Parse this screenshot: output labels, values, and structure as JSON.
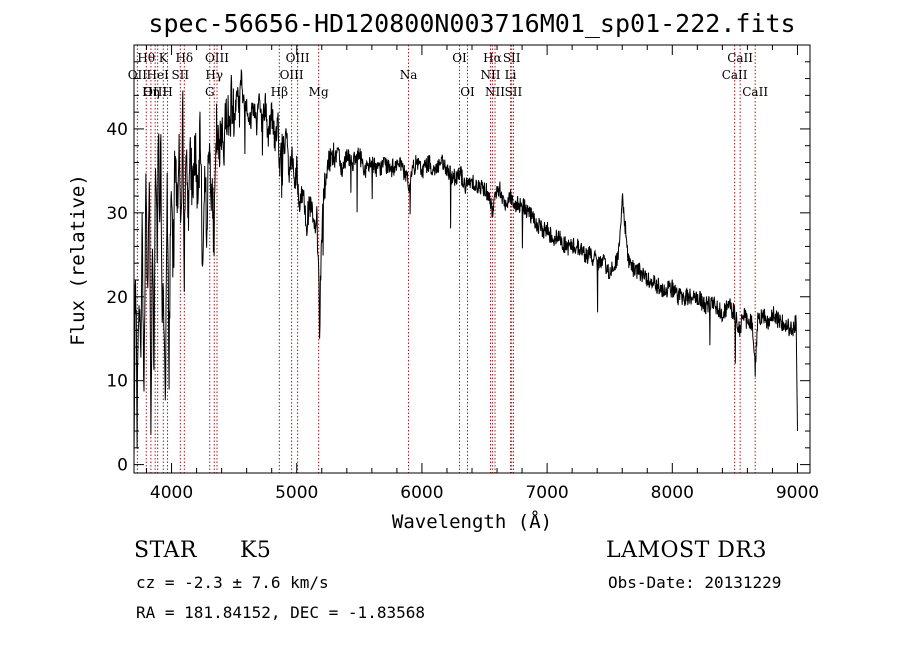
{
  "chart_data": {
    "type": "line",
    "title": "spec-56656-HD120800N003716M01_sp01-222.fits",
    "xlabel": "Wavelength (Å)",
    "ylabel": "Flux (relative)",
    "xlim": [
      3700,
      9100
    ],
    "ylim": [
      -1,
      50
    ],
    "xticks": [
      4000,
      5000,
      6000,
      7000,
      8000,
      9000
    ],
    "yticks": [
      0,
      10,
      20,
      30,
      40
    ],
    "series": [
      {
        "name": "spectrum",
        "anchors": [
          [
            3700,
            0
          ],
          [
            3712,
            25
          ],
          [
            3725,
            5
          ],
          [
            3740,
            22
          ],
          [
            3752,
            12
          ],
          [
            3765,
            28
          ],
          [
            3780,
            8
          ],
          [
            3795,
            35
          ],
          [
            3810,
            18
          ],
          [
            3822,
            37
          ],
          [
            3835,
            5
          ],
          [
            3848,
            28
          ],
          [
            3860,
            14
          ],
          [
            3872,
            37
          ],
          [
            3885,
            24
          ],
          [
            3895,
            40
          ],
          [
            3905,
            30
          ],
          [
            3915,
            39
          ],
          [
            3925,
            14
          ],
          [
            3935,
            22
          ],
          [
            3950,
            8
          ],
          [
            3965,
            32
          ],
          [
            3980,
            12
          ],
          [
            3995,
            34
          ],
          [
            4010,
            24
          ],
          [
            4030,
            38
          ],
          [
            4045,
            30
          ],
          [
            4060,
            39
          ],
          [
            4075,
            26
          ],
          [
            4090,
            42
          ],
          [
            4102,
            24
          ],
          [
            4115,
            38
          ],
          [
            4130,
            32
          ],
          [
            4150,
            36
          ],
          [
            4170,
            33
          ],
          [
            4190,
            38
          ],
          [
            4210,
            30
          ],
          [
            4230,
            40
          ],
          [
            4250,
            22
          ],
          [
            4265,
            37
          ],
          [
            4280,
            28
          ],
          [
            4300,
            38
          ],
          [
            4320,
            33
          ],
          [
            4340,
            27
          ],
          [
            4360,
            40
          ],
          [
            4380,
            36
          ],
          [
            4400,
            41
          ],
          [
            4420,
            38
          ],
          [
            4440,
            43
          ],
          [
            4460,
            40
          ],
          [
            4480,
            44
          ],
          [
            4500,
            41
          ],
          [
            4520,
            45
          ],
          [
            4540,
            43
          ],
          [
            4560,
            46
          ],
          [
            4580,
            42
          ],
          [
            4600,
            44
          ],
          [
            4620,
            40
          ],
          [
            4650,
            43
          ],
          [
            4680,
            41
          ],
          [
            4700,
            44
          ],
          [
            4720,
            40
          ],
          [
            4750,
            43
          ],
          [
            4770,
            39
          ],
          [
            4800,
            42
          ],
          [
            4830,
            38
          ],
          [
            4850,
            41
          ],
          [
            4862,
            35
          ],
          [
            4880,
            39
          ],
          [
            4900,
            37
          ],
          [
            4920,
            39
          ],
          [
            4940,
            34
          ],
          [
            4960,
            37
          ],
          [
            4980,
            33
          ],
          [
            5000,
            35
          ],
          [
            5020,
            30
          ],
          [
            5050,
            33
          ],
          [
            5080,
            29
          ],
          [
            5110,
            31
          ],
          [
            5140,
            28
          ],
          [
            5160,
            29
          ],
          [
            5175,
            24
          ],
          [
            5183,
            16
          ],
          [
            5195,
            26
          ],
          [
            5220,
            33
          ],
          [
            5250,
            35
          ],
          [
            5280,
            38
          ],
          [
            5300,
            36
          ],
          [
            5330,
            38
          ],
          [
            5360,
            35
          ],
          [
            5400,
            37
          ],
          [
            5450,
            36
          ],
          [
            5500,
            37
          ],
          [
            5550,
            35
          ],
          [
            5600,
            36
          ],
          [
            5650,
            35
          ],
          [
            5700,
            36
          ],
          [
            5750,
            35
          ],
          [
            5800,
            36
          ],
          [
            5850,
            35
          ],
          [
            5890,
            34
          ],
          [
            5900,
            32
          ],
          [
            5920,
            35
          ],
          [
            5960,
            36
          ],
          [
            6000,
            35
          ],
          [
            6050,
            36
          ],
          [
            6100,
            35
          ],
          [
            6150,
            36
          ],
          [
            6200,
            35
          ],
          [
            6250,
            34
          ],
          [
            6300,
            35
          ],
          [
            6350,
            33
          ],
          [
            6400,
            34
          ],
          [
            6450,
            33
          ],
          [
            6500,
            33
          ],
          [
            6540,
            32
          ],
          [
            6563,
            30
          ],
          [
            6580,
            32
          ],
          [
            6620,
            33
          ],
          [
            6660,
            31
          ],
          [
            6700,
            32
          ],
          [
            6750,
            31
          ],
          [
            6800,
            31
          ],
          [
            6850,
            30
          ],
          [
            6900,
            29
          ],
          [
            6950,
            28
          ],
          [
            7000,
            28
          ],
          [
            7050,
            27
          ],
          [
            7100,
            27
          ],
          [
            7150,
            26
          ],
          [
            7200,
            26
          ],
          [
            7250,
            26
          ],
          [
            7300,
            25
          ],
          [
            7350,
            25
          ],
          [
            7400,
            24
          ],
          [
            7450,
            24
          ],
          [
            7500,
            23
          ],
          [
            7550,
            24
          ],
          [
            7580,
            26
          ],
          [
            7600,
            32
          ],
          [
            7620,
            29
          ],
          [
            7650,
            24
          ],
          [
            7700,
            23
          ],
          [
            7750,
            23
          ],
          [
            7800,
            22
          ],
          [
            7850,
            22
          ],
          [
            7900,
            21
          ],
          [
            7950,
            21
          ],
          [
            8000,
            21
          ],
          [
            8050,
            20
          ],
          [
            8100,
            20
          ],
          [
            8150,
            20
          ],
          [
            8200,
            20
          ],
          [
            8250,
            19
          ],
          [
            8300,
            19
          ],
          [
            8350,
            19
          ],
          [
            8400,
            18
          ],
          [
            8450,
            19
          ],
          [
            8500,
            18
          ],
          [
            8542,
            16
          ],
          [
            8560,
            18
          ],
          [
            8600,
            17
          ],
          [
            8640,
            17
          ],
          [
            8662,
            11
          ],
          [
            8680,
            17
          ],
          [
            8720,
            18
          ],
          [
            8760,
            17
          ],
          [
            8800,
            18
          ],
          [
            8850,
            17
          ],
          [
            8900,
            17
          ],
          [
            8950,
            16
          ],
          [
            8990,
            17
          ],
          [
            9000,
            4
          ]
        ]
      }
    ],
    "lines": [
      {
        "name": "Hθ",
        "wave": 3798,
        "row": 0
      },
      {
        "name": "OII",
        "wave": 3727,
        "row": 1
      },
      {
        "name": "OIII",
        "wave": 3869,
        "row": 2
      },
      {
        "name": "K",
        "wave": 3934,
        "row": 0
      },
      {
        "name": "HeI",
        "wave": 3889,
        "row": 1
      },
      {
        "name": "Hη",
        "wave": 3835,
        "row": 2
      },
      {
        "name": "Hδ",
        "wave": 4102,
        "row": 0
      },
      {
        "name": "SII",
        "wave": 4070,
        "row": 1
      },
      {
        "name": "H",
        "wave": 3968,
        "row": 2
      },
      {
        "name": "OIII",
        "wave": 4363,
        "row": 0
      },
      {
        "name": "Hγ",
        "wave": 4341,
        "row": 1
      },
      {
        "name": "G",
        "wave": 4305,
        "row": 2
      },
      {
        "name": "Hβ",
        "wave": 4861,
        "row": 3
      },
      {
        "name": "OIII",
        "wave": 5007,
        "row": 0
      },
      {
        "name": "OIII",
        "wave": 4959,
        "row": 1
      },
      {
        "name": "Mg",
        "wave": 5175,
        "row": 3
      },
      {
        "name": "Na",
        "wave": 5893,
        "row": 1
      },
      {
        "name": "OI",
        "wave": 6300,
        "row": 0
      },
      {
        "name": "OI",
        "wave": 6364,
        "row": 2
      },
      {
        "name": "Hα",
        "wave": 6563,
        "row": 0
      },
      {
        "name": "NII",
        "wave": 6548,
        "row": 1
      },
      {
        "name": "NII",
        "wave": 6584,
        "row": 2
      },
      {
        "name": "SII",
        "wave": 6717,
        "row": 0
      },
      {
        "name": "Li",
        "wave": 6708,
        "row": 1
      },
      {
        "name": "SII",
        "wave": 6731,
        "row": 2
      },
      {
        "name": "CaII",
        "wave": 8542,
        "row": 0
      },
      {
        "name": "CaII",
        "wave": 8498,
        "row": 1
      },
      {
        "name": "CaII",
        "wave": 8662,
        "row": 2
      }
    ],
    "colors": {
      "line": "#000000",
      "marker": "#b0171f",
      "axis": "#000000"
    }
  },
  "info": {
    "object_class": "STAR",
    "subclass": "K5",
    "survey": "LAMOST DR3",
    "redshift": "cz = -2.3 ± 7.6 km/s",
    "obs_date": "Obs-Date: 20131229",
    "coords": "RA = 181.84152, DEC =  -1.83568"
  }
}
